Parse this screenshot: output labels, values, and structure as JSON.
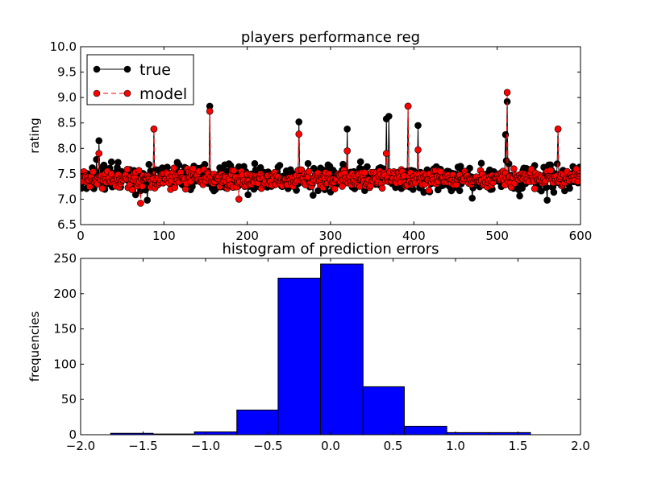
{
  "chart_data": [
    {
      "type": "line",
      "title": "players performance reg",
      "xlabel": "",
      "ylabel": "rating",
      "xlim": [
        0,
        600
      ],
      "ylim": [
        6.5,
        10.0
      ],
      "xticks": [
        0,
        100,
        200,
        300,
        400,
        500,
        600
      ],
      "yticks": [
        6.5,
        7.0,
        7.5,
        8.0,
        8.5,
        9.0,
        9.5,
        10.0
      ],
      "grid": false,
      "legend_position": "top-left",
      "series": [
        {
          "name": "true",
          "color": "#000000",
          "marker": "circle",
          "linestyle": "solid",
          "base": 7.42,
          "spread": 0.3,
          "spikes": [
            [
              22,
              8.15
            ],
            [
              88,
              8.38
            ],
            [
              155,
              8.83
            ],
            [
              262,
              8.52
            ],
            [
              320,
              8.38
            ],
            [
              367,
              8.58
            ],
            [
              370,
              8.63
            ],
            [
              393,
              8.83
            ],
            [
              405,
              8.45
            ],
            [
              510,
              8.27
            ],
            [
              512,
              8.92
            ],
            [
              573,
              8.38
            ],
            [
              80,
              6.98
            ],
            [
              470,
              7.02
            ],
            [
              560,
              6.98
            ]
          ]
        },
        {
          "name": "model",
          "color": "#ff0000",
          "marker": "circle",
          "linestyle": "dashed",
          "base": 7.4,
          "spread": 0.2,
          "spikes": [
            [
              22,
              7.9
            ],
            [
              88,
              8.38
            ],
            [
              155,
              8.73
            ],
            [
              262,
              8.28
            ],
            [
              320,
              7.95
            ],
            [
              367,
              7.9
            ],
            [
              393,
              8.83
            ],
            [
              405,
              7.97
            ],
            [
              512,
              9.1
            ],
            [
              573,
              8.38
            ],
            [
              72,
              6.92
            ],
            [
              190,
              7.0
            ]
          ]
        }
      ]
    },
    {
      "type": "bar",
      "subtype": "histogram",
      "title": "histogram of prediction errors",
      "xlabel": "",
      "ylabel": "frequencies",
      "xlim": [
        -2.0,
        2.0
      ],
      "ylim": [
        0,
        250
      ],
      "xticks": [
        -2.0,
        -1.5,
        -1.0,
        -0.5,
        0.0,
        0.5,
        1.0,
        1.5,
        2.0
      ],
      "yticks": [
        0,
        50,
        100,
        150,
        200,
        250
      ],
      "grid": false,
      "bar_color": "#0000ff",
      "bin_edges": [
        -1.76,
        -1.42,
        -1.09,
        -0.75,
        -0.42,
        -0.08,
        0.26,
        0.59,
        0.93,
        1.27,
        1.6
      ],
      "counts": [
        2,
        1,
        4,
        35,
        222,
        242,
        68,
        12,
        3,
        3
      ]
    }
  ]
}
